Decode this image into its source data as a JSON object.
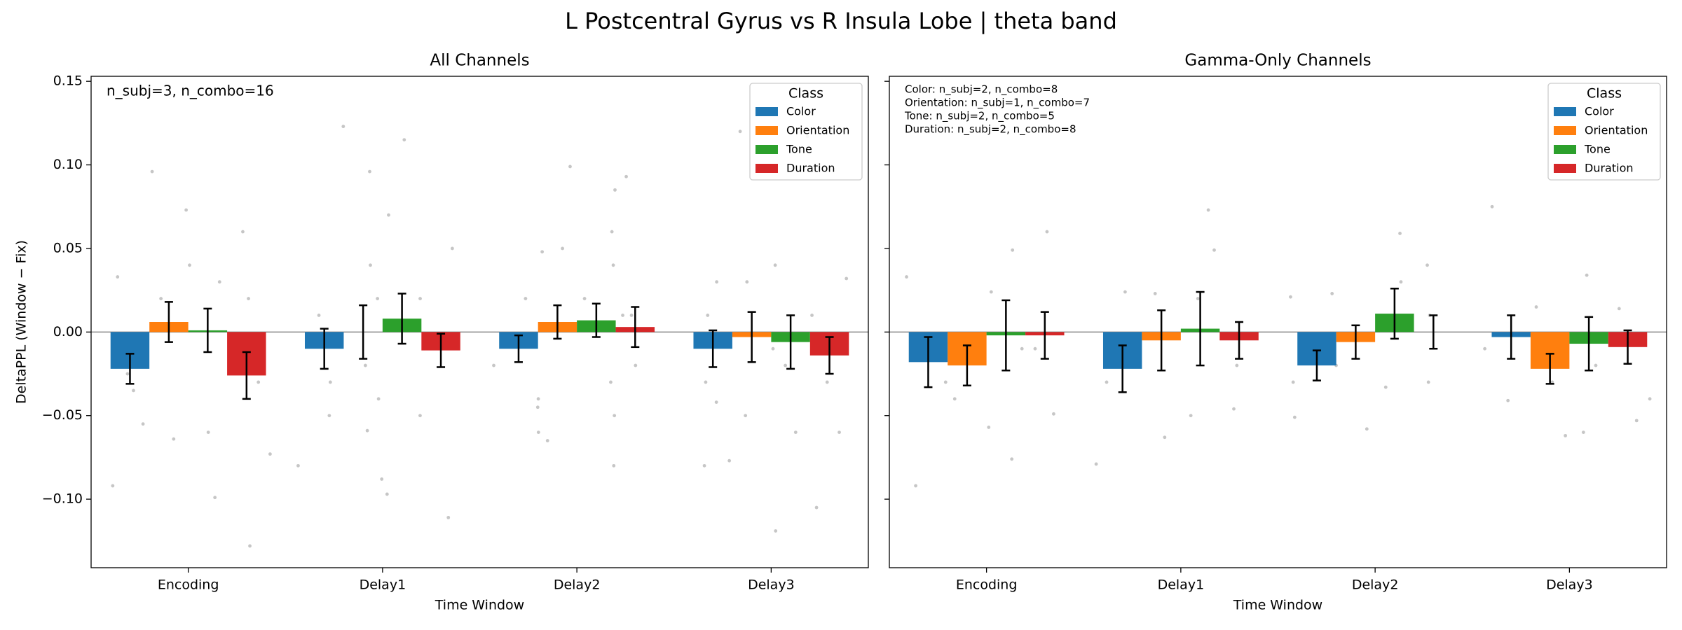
{
  "title": "L Postcentral Gyrus vs R Insula Lobe  |  theta band",
  "chart_data": [
    {
      "type": "bar",
      "title": "All Channels",
      "x_label": "Time Window",
      "y_label": "DeltaPPL (Window − Fix)",
      "categories": [
        "Encoding",
        "Delay1",
        "Delay2",
        "Delay3"
      ],
      "ylim": [
        -0.141,
        0.153
      ],
      "yticks": [
        {
          "value": -0.1,
          "label": "−0.10"
        },
        {
          "value": -0.05,
          "label": "−0.05"
        },
        {
          "value": 0,
          "label": "0.00"
        },
        {
          "value": 0.05,
          "label": "0.05"
        },
        {
          "value": 0.1,
          "label": "0.10"
        },
        {
          "value": 0.15,
          "label": "0.15"
        }
      ],
      "zero_line": true,
      "legend": "upper right",
      "legend_title": "Class",
      "annotations": [
        "n_subj=3, n_combo=16"
      ],
      "series": [
        {
          "name": "Color",
          "color": "#1f77b4",
          "values": [
            -0.022,
            -0.01,
            -0.01,
            -0.01
          ],
          "errors": [
            0.009,
            0.012,
            0.008,
            0.011
          ],
          "points": [
            [
              -0.092,
              -0.055,
              -0.035,
              -0.025,
              0.033
            ],
            [
              -0.08,
              -0.05,
              -0.03,
              0.01,
              0.123
            ],
            [
              -0.06,
              -0.045,
              -0.02,
              0.02,
              0.048
            ],
            [
              -0.08,
              -0.042,
              -0.03,
              0.01,
              0.03
            ]
          ]
        },
        {
          "name": "Orientation",
          "color": "#ff7f0e",
          "values": [
            0.006,
            0.0,
            0.006,
            -0.003
          ],
          "errors": [
            0.012,
            0.016,
            0.01,
            0.015
          ],
          "points": [
            [
              -0.064,
              -0.02,
              0.02,
              0.04,
              0.096
            ],
            [
              -0.097,
              -0.059,
              -0.02,
              0.04,
              0.096
            ],
            [
              -0.065,
              -0.04,
              0.02,
              0.05,
              0.099
            ],
            [
              -0.077,
              -0.05,
              -0.01,
              0.03,
              0.12
            ]
          ]
        },
        {
          "name": "Tone",
          "color": "#2ca02c",
          "values": [
            0.001,
            0.008,
            0.007,
            -0.006
          ],
          "errors": [
            0.013,
            0.015,
            0.01,
            0.016
          ],
          "points": [
            [
              -0.099,
              -0.06,
              -0.02,
              0.03,
              0.073
            ],
            [
              -0.088,
              -0.04,
              0.02,
              0.07,
              0.115
            ],
            [
              -0.08,
              -0.03,
              0.01,
              0.06,
              0.085
            ],
            [
              -0.119,
              -0.06,
              -0.02,
              0.04,
              0.117
            ]
          ]
        },
        {
          "name": "Duration",
          "color": "#d62728",
          "values": [
            -0.026,
            -0.011,
            0.003,
            -0.014
          ],
          "errors": [
            0.014,
            0.01,
            0.012,
            0.011
          ],
          "points": [
            [
              -0.128,
              -0.073,
              -0.03,
              0.02,
              0.06
            ],
            [
              -0.111,
              -0.05,
              -0.01,
              0.02,
              0.05
            ],
            [
              -0.05,
              -0.02,
              0.01,
              0.04,
              0.093
            ],
            [
              -0.105,
              -0.06,
              -0.03,
              0.01,
              0.032
            ]
          ]
        }
      ]
    },
    {
      "type": "bar",
      "title": "Gamma-Only Channels",
      "x_label": "Time Window",
      "sharey": true,
      "categories": [
        "Encoding",
        "Delay1",
        "Delay2",
        "Delay3"
      ],
      "zero_line": true,
      "legend": "upper right",
      "legend_title": "Class",
      "annotations": [
        "Color: n_subj=2, n_combo=8",
        "Orientation: n_subj=1, n_combo=7",
        "Tone: n_subj=2, n_combo=5",
        "Duration: n_subj=2, n_combo=8"
      ],
      "series": [
        {
          "name": "Color",
          "color": "#1f77b4",
          "values": [
            -0.018,
            -0.022,
            -0.02,
            -0.003
          ],
          "errors": [
            0.015,
            0.014,
            0.009,
            0.013
          ],
          "points": [
            [
              -0.092,
              -0.04,
              0.033
            ],
            [
              -0.079,
              -0.03,
              0.024
            ],
            [
              -0.051,
              -0.03,
              0.021
            ],
            [
              -0.041,
              -0.01,
              0.075
            ]
          ]
        },
        {
          "name": "Orientation",
          "color": "#ff7f0e",
          "values": [
            -0.02,
            -0.005,
            -0.006,
            -0.022
          ],
          "errors": [
            0.012,
            0.018,
            0.01,
            0.009
          ],
          "points": [
            [
              -0.057,
              -0.03,
              0.024
            ],
            [
              -0.063,
              -0.02,
              0.023
            ],
            [
              -0.058,
              -0.02,
              0.023
            ],
            [
              -0.062,
              -0.03,
              0.015
            ]
          ]
        },
        {
          "name": "Tone",
          "color": "#2ca02c",
          "values": [
            -0.002,
            0.002,
            0.011,
            -0.007
          ],
          "errors": [
            0.021,
            0.022,
            0.015,
            0.016
          ],
          "points": [
            [
              -0.076,
              -0.01,
              0.049
            ],
            [
              -0.05,
              0.02,
              0.073
            ],
            [
              -0.033,
              0.03,
              0.059
            ],
            [
              -0.06,
              -0.02,
              0.034
            ]
          ]
        },
        {
          "name": "Duration",
          "color": "#d62728",
          "values": [
            -0.002,
            -0.005,
            0.0,
            -0.009
          ],
          "errors": [
            0.014,
            0.011,
            0.01,
            0.01
          ],
          "points": [
            [
              -0.049,
              -0.01,
              0.06
            ],
            [
              -0.046,
              -0.02,
              0.049
            ],
            [
              -0.03,
              0.01,
              0.04
            ],
            [
              -0.053,
              -0.04,
              0.014
            ]
          ]
        }
      ]
    }
  ]
}
